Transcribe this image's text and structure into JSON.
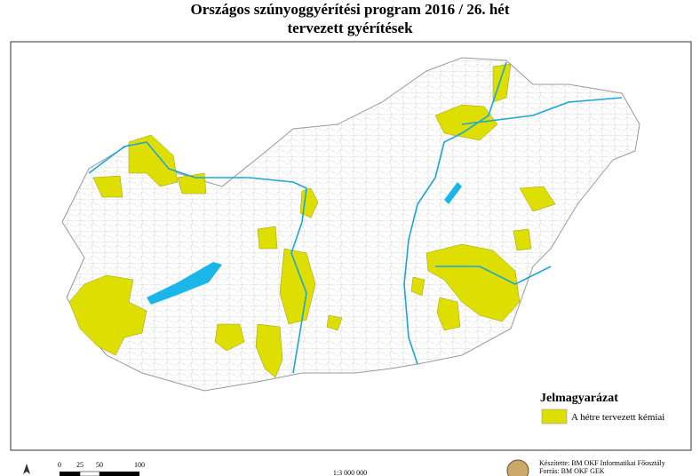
{
  "header": {
    "title": "Országos szúnyoggyérítési program 2016 / 26. hét",
    "subtitle": "tervezett gyérítések"
  },
  "legend": {
    "title": "Jelmagyarázat",
    "items": [
      {
        "label": "A hétre tervezett kémiai",
        "color": "#dede00"
      }
    ]
  },
  "scale_bar": {
    "labels": [
      "0",
      "25",
      "50",
      "100"
    ],
    "ratio": "1:3 000 000"
  },
  "credits": [
    "Készítette: BM OKF Informatikai Főosztály",
    "Forrás: BM OKF GEK"
  ]
}
